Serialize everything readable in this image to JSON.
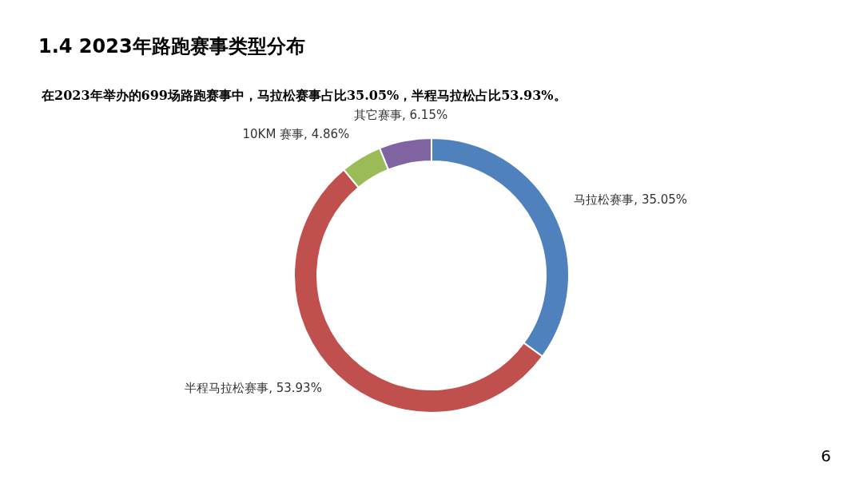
{
  "chart_data": {
    "type": "donut",
    "title": "1.4 2023年路跑赛事类型分布",
    "subtitle": "在2023年举办的699场路跑赛事中，马拉松赛事占比35.05%，半程马拉松占比53.93%。",
    "categories": [
      "马拉松赛事",
      "半程马拉松赛事",
      "10KM 赛事",
      "其它赛事"
    ],
    "values": [
      35.05,
      53.93,
      4.86,
      6.15
    ],
    "value_labels": [
      "35.05%",
      "53.93%",
      "4.86%",
      "6.15%"
    ],
    "colors": [
      "#4f81bd",
      "#c0504d",
      "#9bbb59",
      "#8064a2"
    ],
    "annotations": [
      "6"
    ]
  }
}
